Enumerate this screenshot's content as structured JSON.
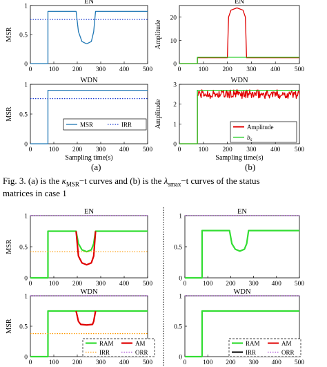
{
  "figure3": {
    "sub_a": "(a)",
    "sub_b": "(b)",
    "caption_line1_prefix": "Fig. 3.  (a) is the ",
    "caption_kappa": "κ",
    "caption_kappa_sub": "MSR",
    "caption_mid": "−t curves and (b) is the ",
    "caption_lambda": "λ",
    "caption_lambda_sub": "smax",
    "caption_line1_suffix": "−t curves of the status",
    "caption_line2": "matrices in case 1"
  },
  "colors": {
    "msr_blue": "#1f77b4",
    "irr_blue": "#1f3fd0",
    "amplitude_red": "#e00000",
    "bs_green": "#22cc22",
    "ram_green": "#33dd33",
    "am_red": "#e00000",
    "irr_orange": "#ff9900",
    "orr_purple": "#a040d0"
  },
  "chart_data": [
    {
      "id": "a-en",
      "type": "line",
      "title": "EN",
      "xlabel": "",
      "ylabel": "MSR",
      "xlim": [
        0,
        500
      ],
      "ylim": [
        0,
        1
      ],
      "xticks": [
        "0",
        "100",
        "200",
        "300",
        "400",
        "500"
      ],
      "yticks": [
        "0",
        "0.5",
        "1"
      ],
      "series": [
        {
          "name": "MSR",
          "style": "solid",
          "color": "#1f77b4",
          "x": [
            0,
            75,
            75,
            195,
            205,
            220,
            240,
            260,
            270,
            278,
            500
          ],
          "y": [
            0,
            0,
            0.9,
            0.9,
            0.55,
            0.38,
            0.34,
            0.38,
            0.55,
            0.9,
            0.9
          ]
        },
        {
          "name": "IRR",
          "style": "dotted",
          "color": "#1f3fd0",
          "x": [
            0,
            500
          ],
          "y": [
            0.76,
            0.76
          ]
        }
      ]
    },
    {
      "id": "a-wdn",
      "type": "line",
      "title": "WDN",
      "xlabel": "Sampling time(s)",
      "ylabel": "MSR",
      "xlim": [
        0,
        500
      ],
      "ylim": [
        0,
        1
      ],
      "xticks": [
        "0",
        "100",
        "200",
        "300",
        "400",
        "500"
      ],
      "yticks": [
        "0",
        "0.5",
        "1"
      ],
      "legend": {
        "position": "bottom-right",
        "entries": [
          "MSR",
          "IRR"
        ]
      },
      "series": [
        {
          "name": "MSR",
          "style": "solid",
          "color": "#1f77b4",
          "x": [
            0,
            75,
            75,
            500
          ],
          "y": [
            0,
            0,
            0.9,
            0.9
          ]
        },
        {
          "name": "IRR",
          "style": "dotted",
          "color": "#1f3fd0",
          "x": [
            0,
            500
          ],
          "y": [
            0.76,
            0.76
          ]
        }
      ]
    },
    {
      "id": "b-en",
      "type": "line",
      "title": "EN",
      "xlabel": "",
      "ylabel": "Amplitude",
      "xlim": [
        0,
        500
      ],
      "ylim": [
        0,
        25
      ],
      "xticks": [
        "0",
        "100",
        "200",
        "300",
        "400",
        "500"
      ],
      "yticks": [
        "0",
        "10",
        "20"
      ],
      "series": [
        {
          "name": "Amplitude",
          "style": "solid",
          "color": "#e00000",
          "x": [
            0,
            75,
            75,
            200,
            205,
            215,
            240,
            265,
            275,
            280,
            500
          ],
          "y": [
            0,
            0,
            2.5,
            2.5,
            20,
            23,
            24,
            23,
            20,
            2.5,
            2.5
          ]
        },
        {
          "name": "bs",
          "style": "solid",
          "color": "#22cc22",
          "x": [
            0,
            75,
            75,
            500
          ],
          "y": [
            0,
            0,
            2.7,
            2.7
          ]
        }
      ]
    },
    {
      "id": "b-wdn",
      "type": "line",
      "title": "WDN",
      "xlabel": "Sampling time(s)",
      "ylabel": "Amplitude",
      "xlim": [
        0,
        500
      ],
      "ylim": [
        0,
        3
      ],
      "xticks": [
        "0",
        "100",
        "200",
        "300",
        "400",
        "500"
      ],
      "yticks": [
        "0",
        "1",
        "2",
        "3"
      ],
      "legend": {
        "position": "bottom-right",
        "entries": [
          "Amplitude",
          "bs"
        ]
      },
      "series": [
        {
          "name": "Amplitude",
          "style": "noisy",
          "color": "#e00000",
          "x": [
            0,
            75,
            75,
            500
          ],
          "y": [
            0,
            0,
            2.5,
            2.5
          ]
        },
        {
          "name": "bs",
          "style": "solid",
          "color": "#22cc22",
          "x": [
            0,
            75,
            75,
            500
          ],
          "y": [
            0,
            0,
            2.7,
            2.7
          ]
        }
      ]
    },
    {
      "id": "c-en-left",
      "type": "line",
      "title": "EN",
      "xlabel": "",
      "ylabel": "MSR",
      "xlim": [
        0,
        500
      ],
      "ylim": [
        0,
        1
      ],
      "xticks": [
        "0",
        "100",
        "200",
        "300",
        "400",
        "500"
      ],
      "yticks": [
        "0",
        "0.5",
        "1"
      ],
      "series": [
        {
          "name": "RAM",
          "style": "thick",
          "color": "#33dd33",
          "x": [
            0,
            75,
            75,
            195,
            205,
            220,
            240,
            260,
            270,
            278,
            500
          ],
          "y": [
            0,
            0,
            0.75,
            0.75,
            0.55,
            0.45,
            0.42,
            0.45,
            0.55,
            0.75,
            0.75
          ]
        },
        {
          "name": "AM",
          "style": "thick",
          "color": "#e00000",
          "x": [
            195,
            205,
            220,
            240,
            260,
            270,
            278
          ],
          "y": [
            0.75,
            0.35,
            0.24,
            0.21,
            0.24,
            0.35,
            0.75
          ]
        },
        {
          "name": "IRR",
          "style": "dotted",
          "color": "#ff9900",
          "x": [
            0,
            500
          ],
          "y": [
            0.42,
            0.42
          ]
        },
        {
          "name": "ORR",
          "style": "dotted",
          "color": "#a040d0",
          "x": [
            0,
            500
          ],
          "y": [
            1,
            1
          ]
        }
      ]
    },
    {
      "id": "c-en-right",
      "type": "line",
      "title": "EN",
      "xlabel": "",
      "ylabel": "",
      "xlim": [
        0,
        500
      ],
      "ylim": [
        0,
        1
      ],
      "xticks": [
        "0",
        "100",
        "200",
        "300",
        "400",
        "500"
      ],
      "yticks": [
        "0",
        "0.5",
        "1"
      ],
      "series": [
        {
          "name": "RAM",
          "style": "thick",
          "color": "#33dd33",
          "x": [
            0,
            75,
            75,
            195,
            205,
            220,
            240,
            260,
            270,
            278,
            500
          ],
          "y": [
            0,
            0,
            0.76,
            0.76,
            0.55,
            0.46,
            0.43,
            0.46,
            0.55,
            0.76,
            0.76
          ]
        },
        {
          "name": "ORR",
          "style": "dotted",
          "color": "#a040d0",
          "x": [
            0,
            500
          ],
          "y": [
            1,
            1
          ]
        }
      ]
    },
    {
      "id": "c-wdn-left",
      "type": "line",
      "title": "WDN",
      "xlabel": "",
      "ylabel": "MSR",
      "xlim": [
        0,
        500
      ],
      "ylim": [
        0,
        1
      ],
      "xticks": [
        "0",
        "100",
        "200",
        "300",
        "400",
        "500"
      ],
      "yticks": [
        "0",
        "0.5",
        "1"
      ],
      "legend": {
        "position": "bottom",
        "entries": [
          "RAM",
          "AM",
          "IRR",
          "ORR"
        ]
      },
      "series": [
        {
          "name": "RAM",
          "style": "thick",
          "color": "#33dd33",
          "x": [
            0,
            75,
            75,
            500
          ],
          "y": [
            0,
            0,
            0.75,
            0.75
          ]
        },
        {
          "name": "AM",
          "style": "thick",
          "color": "#e00000",
          "x": [
            195,
            205,
            215,
            240,
            265,
            270,
            278
          ],
          "y": [
            0.75,
            0.58,
            0.53,
            0.52,
            0.53,
            0.58,
            0.75
          ]
        },
        {
          "name": "IRR",
          "style": "dotted",
          "color": "#ff9900",
          "x": [
            0,
            500
          ],
          "y": [
            0.38,
            0.38
          ]
        },
        {
          "name": "ORR",
          "style": "dotted",
          "color": "#a040d0",
          "x": [
            0,
            500
          ],
          "y": [
            1,
            1
          ]
        }
      ]
    },
    {
      "id": "c-wdn-right",
      "type": "line",
      "title": "WDN",
      "xlabel": "",
      "ylabel": "",
      "xlim": [
        0,
        500
      ],
      "ylim": [
        0,
        1
      ],
      "xticks": [
        "0",
        "100",
        "200",
        "300",
        "400",
        "500"
      ],
      "yticks": [
        "0",
        "0.5",
        "1"
      ],
      "legend": {
        "position": "bottom",
        "entries": [
          "RAM",
          "AM",
          "IRR",
          "ORR"
        ]
      },
      "series": [
        {
          "name": "RAM",
          "style": "thick",
          "color": "#33dd33",
          "x": [
            0,
            75,
            75,
            500
          ],
          "y": [
            0,
            0,
            0.75,
            0.75
          ]
        },
        {
          "name": "ORR",
          "style": "dotted",
          "color": "#a040d0",
          "x": [
            0,
            500
          ],
          "y": [
            1,
            1
          ]
        }
      ]
    }
  ]
}
